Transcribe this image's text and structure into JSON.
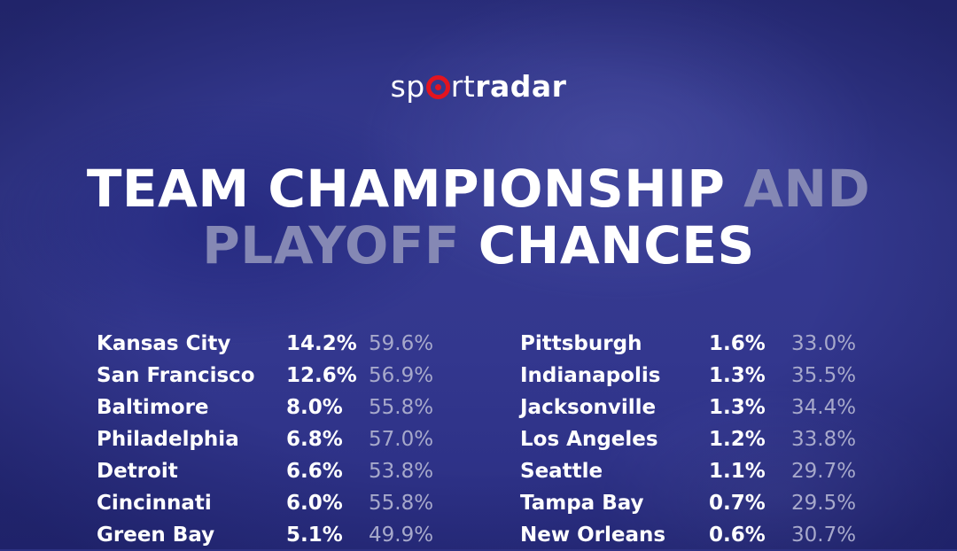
{
  "logo": {
    "part1": "sp",
    "part2": "rt",
    "part3": "radar",
    "ring_color": "#e3141f"
  },
  "title": {
    "line1_main": "TEAM CHAMPIONSHIP",
    "line1_dim": "AND",
    "line2_dim": "PLAYOFF",
    "line2_main": "CHANCES"
  },
  "colors": {
    "background": "#33378e",
    "dim_text": "#8588b4",
    "playoff_text": "#a7a9cb"
  },
  "left_column": [
    {
      "team": "Kansas City",
      "championship": "14.2%",
      "playoff": "59.6%"
    },
    {
      "team": "San Francisco",
      "championship": "12.6%",
      "playoff": "56.9%"
    },
    {
      "team": "Baltimore",
      "championship": "8.0%",
      "playoff": "55.8%"
    },
    {
      "team": "Philadelphia",
      "championship": "6.8%",
      "playoff": "57.0%"
    },
    {
      "team": "Detroit",
      "championship": "6.6%",
      "playoff": "53.8%"
    },
    {
      "team": "Cincinnati",
      "championship": "6.0%",
      "playoff": "55.8%"
    },
    {
      "team": "Green Bay",
      "championship": "5.1%",
      "playoff": "49.9%"
    }
  ],
  "right_column": [
    {
      "team": "Pittsburgh",
      "championship": "1.6%",
      "playoff": "33.0%"
    },
    {
      "team": "Indianapolis",
      "championship": "1.3%",
      "playoff": "35.5%"
    },
    {
      "team": "Jacksonville",
      "championship": "1.3%",
      "playoff": "34.4%"
    },
    {
      "team": "Los Angeles",
      "championship": "1.2%",
      "playoff": "33.8%"
    },
    {
      "team": "Seattle",
      "championship": "1.1%",
      "playoff": "29.7%"
    },
    {
      "team": "Tampa Bay",
      "championship": "0.7%",
      "playoff": "29.5%"
    },
    {
      "team": "New Orleans",
      "championship": "0.6%",
      "playoff": "30.7%"
    }
  ]
}
